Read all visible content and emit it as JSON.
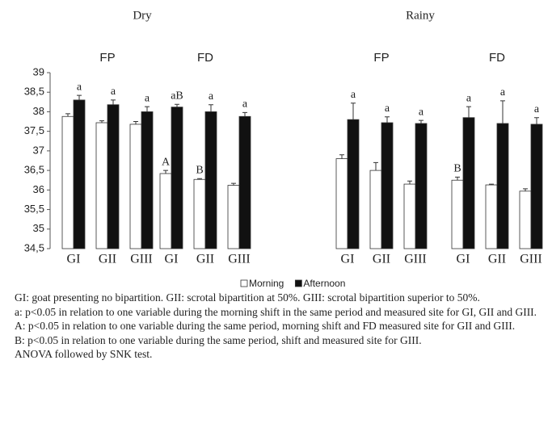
{
  "chart_data": {
    "type": "bar",
    "ylim": [
      34.5,
      39
    ],
    "yticks": [
      {
        "value": 34.5,
        "label": "34,5"
      },
      35,
      {
        "value": 35.5,
        "label": "35,5"
      },
      36,
      {
        "value": 36.5,
        "label": "36,5"
      },
      37,
      {
        "value": 37.5,
        "label": "37,5"
      },
      38,
      {
        "value": 38.5,
        "label": "38,5"
      },
      39
    ],
    "series": [
      {
        "name": "Morning",
        "color": "#ffffff"
      },
      {
        "name": "Afternoon",
        "color": "#111111"
      }
    ],
    "periods": [
      {
        "title": "Dry",
        "panels": [
          {
            "title": "FP",
            "categories": [
              "GI",
              "GII",
              "GIII"
            ],
            "series_values": [
              {
                "values": [
                  37.88,
                  37.72,
                  37.68
                ],
                "errors": [
                  0.07,
                  0.05,
                  0.07
                ],
                "labels": [
                  null,
                  null,
                  null
                ]
              },
              {
                "values": [
                  38.3,
                  38.18,
                  38.0
                ],
                "errors": [
                  0.12,
                  0.12,
                  0.13
                ],
                "labels": [
                  "a",
                  "a",
                  "a"
                ]
              }
            ]
          },
          {
            "title": "FD",
            "categories": [
              "GI",
              "GII",
              "GIII"
            ],
            "series_values": [
              {
                "values": [
                  36.42,
                  36.27,
                  36.12
                ],
                "errors": [
                  0.08,
                  0.02,
                  0.05
                ],
                "labels": [
                  "A",
                  "B",
                  null
                ]
              },
              {
                "values": [
                  38.12,
                  38.0,
                  37.88
                ],
                "errors": [
                  0.07,
                  0.18,
                  0.1
                ],
                "labels": [
                  "aB",
                  "a",
                  "a"
                ]
              }
            ]
          }
        ]
      },
      {
        "title": "Rainy",
        "panels": [
          {
            "title": "FP",
            "categories": [
              "GI",
              "GII",
              "GIII"
            ],
            "series_values": [
              {
                "values": [
                  36.8,
                  36.5,
                  36.15
                ],
                "errors": [
                  0.1,
                  0.2,
                  0.08
                ],
                "labels": [
                  null,
                  null,
                  null
                ]
              },
              {
                "values": [
                  37.8,
                  37.72,
                  37.7
                ],
                "errors": [
                  0.42,
                  0.15,
                  0.08
                ],
                "labels": [
                  "a",
                  "a",
                  "a"
                ]
              }
            ]
          },
          {
            "title": "FD",
            "categories": [
              "GI",
              "GII",
              "GIII"
            ],
            "series_values": [
              {
                "values": [
                  36.25,
                  36.13,
                  35.97
                ],
                "errors": [
                  0.08,
                  0.02,
                  0.06
                ],
                "labels": [
                  "B",
                  null,
                  null
                ]
              },
              {
                "values": [
                  37.85,
                  37.7,
                  37.68
                ],
                "errors": [
                  0.28,
                  0.58,
                  0.17
                ],
                "labels": [
                  "a",
                  "a",
                  "a"
                ]
              }
            ]
          }
        ]
      }
    ]
  },
  "notes": [
    "GI: goat presenting no bipartition. GII: scrotal bipartition at 50%. GIII: scrotal bipartition superior to 50%.",
    "a: p<0.05 in relation to one variable during the morning shift in the same period and measured site for GI, GII and GIII.",
    "A: p<0.05 in relation to one variable during the same period, morning shift and FD measured site for GII and GIII.",
    "B: p<0.05 in relation to one variable during the same period, shift and measured site for GIII.",
    "ANOVA followed by SNK test."
  ]
}
